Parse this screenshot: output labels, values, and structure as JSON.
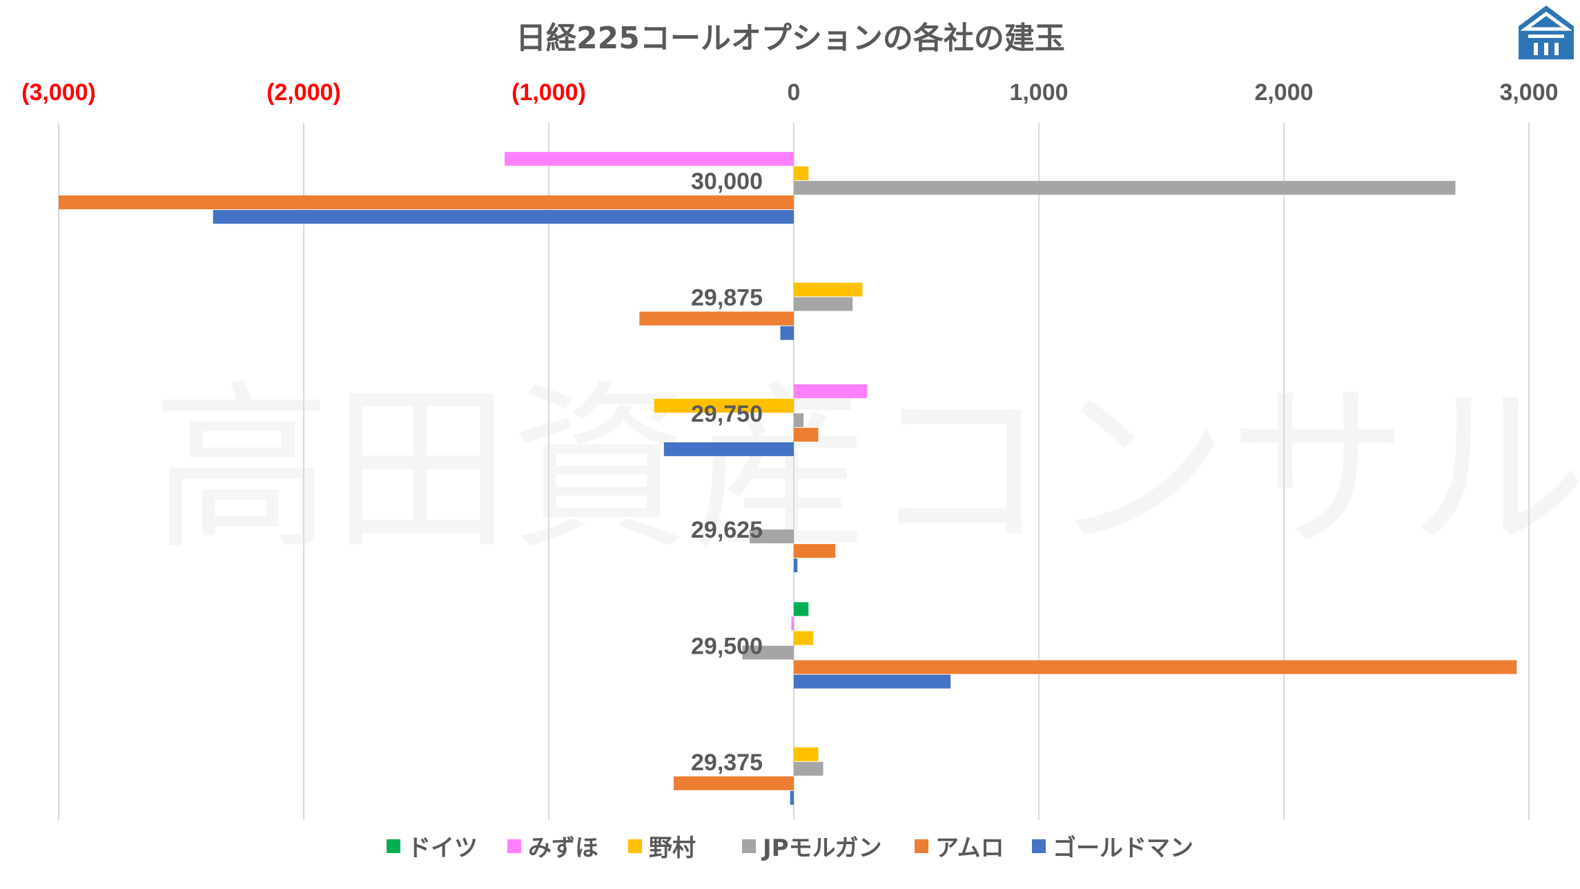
{
  "watermark": "高田資産コンサル",
  "chart_data": {
    "type": "bar",
    "orientation": "horizontal",
    "title": "日経225コールオプションの各社の建玉",
    "categories": [
      "30,000",
      "29,875",
      "29,750",
      "29,625",
      "29,500",
      "29,375"
    ],
    "series": [
      {
        "name": "ドイツ",
        "color": "#00b050",
        "values": [
          0,
          0,
          0,
          0,
          60,
          0
        ]
      },
      {
        "name": "みずほ",
        "color": "#ff80ff",
        "values": [
          -1180,
          0,
          300,
          0,
          -10,
          0
        ]
      },
      {
        "name": "野村",
        "color": "#ffc000",
        "values": [
          60,
          280,
          -570,
          0,
          80,
          100
        ]
      },
      {
        "name": "JPモルガン",
        "color": "#a5a5a5",
        "values": [
          2700,
          240,
          40,
          -180,
          -210,
          120
        ]
      },
      {
        "name": "アムロ",
        "color": "#ed7d31",
        "values": [
          -3000,
          -630,
          100,
          170,
          2950,
          -490
        ]
      },
      {
        "name": "ゴールドマン",
        "color": "#4472c4",
        "values": [
          -2370,
          -55,
          -530,
          15,
          640,
          -15
        ]
      }
    ],
    "xlim": [
      -3000,
      3000
    ],
    "ticks": [
      {
        "value": -3000,
        "label": "(3,000)",
        "color": "#ff0000"
      },
      {
        "value": -2000,
        "label": "(2,000)",
        "color": "#ff0000"
      },
      {
        "value": -1000,
        "label": "(1,000)",
        "color": "#ff0000"
      },
      {
        "value": 0,
        "label": "0",
        "color": "#595959"
      },
      {
        "value": 1000,
        "label": "1,000",
        "color": "#595959"
      },
      {
        "value": 2000,
        "label": "2,000",
        "color": "#595959"
      },
      {
        "value": 3000,
        "label": "3,000",
        "color": "#595959"
      }
    ],
    "grid": true,
    "legend_position": "bottom"
  },
  "logo": {
    "color": "#2e75b6"
  }
}
